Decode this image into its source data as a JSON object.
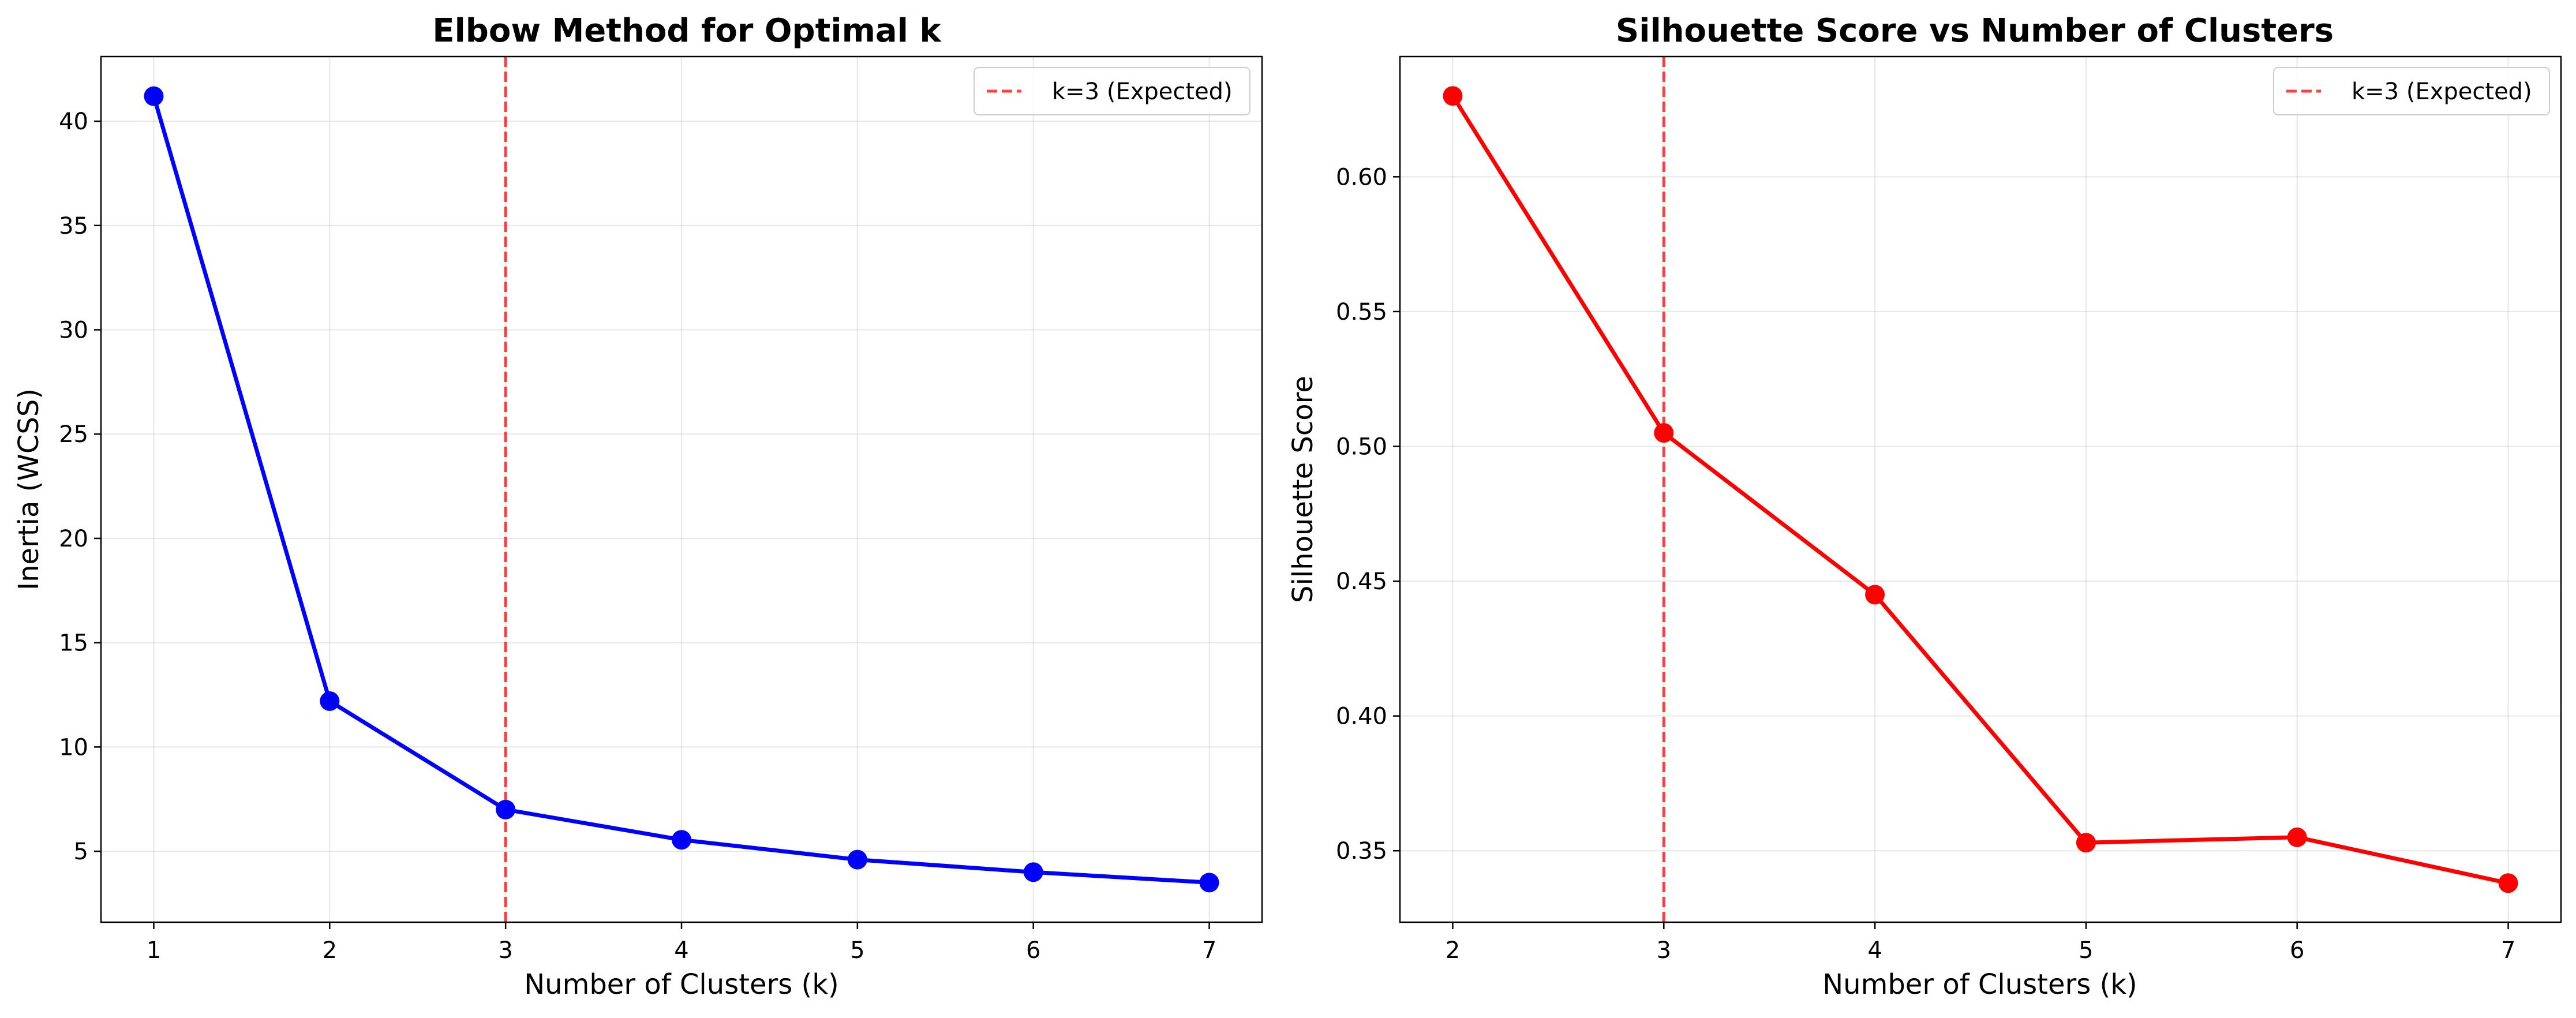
{
  "chart_data": [
    {
      "type": "line",
      "title": "Elbow Method for Optimal k",
      "xlabel": "Number of Clusters (k)",
      "ylabel": "Inertia (WCSS)",
      "x": [
        1,
        2,
        3,
        4,
        5,
        6,
        7
      ],
      "series": [
        {
          "values": [
            41.2,
            12.2,
            7.0,
            5.55,
            4.6,
            4.0,
            3.5
          ],
          "color": "#0000ff",
          "marker": "circle"
        }
      ],
      "xlim": [
        0.7,
        7.3
      ],
      "ylim": [
        1.6,
        43.1
      ],
      "xticks": [
        "1",
        "2",
        "3",
        "4",
        "5",
        "6",
        "7"
      ],
      "yticks": [
        "5",
        "10",
        "15",
        "20",
        "25",
        "30",
        "35",
        "40"
      ],
      "reference_line": {
        "x": 3,
        "color": "#ff0000",
        "style": "dashed"
      },
      "legend": {
        "position": "top-right",
        "entries": [
          "k=3 (Expected)"
        ]
      },
      "grid": true
    },
    {
      "type": "line",
      "title": "Silhouette Score vs Number of Clusters",
      "xlabel": "Number of Clusters (k)",
      "ylabel": "Silhouette Score",
      "x": [
        2,
        3,
        4,
        5,
        6,
        7
      ],
      "series": [
        {
          "values": [
            0.63,
            0.505,
            0.445,
            0.353,
            0.355,
            0.338
          ],
          "color": "#ff0000",
          "marker": "circle"
        }
      ],
      "xlim": [
        1.75,
        7.25
      ],
      "ylim": [
        0.3235,
        0.6446
      ],
      "xticks": [
        "2",
        "3",
        "4",
        "5",
        "6",
        "7"
      ],
      "yticks": [
        "0.35",
        "0.40",
        "0.45",
        "0.50",
        "0.55",
        "0.60"
      ],
      "reference_line": {
        "x": 3,
        "color": "#ff0000",
        "style": "dashed"
      },
      "legend": {
        "position": "top-right",
        "entries": [
          "k=3 (Expected)"
        ]
      },
      "grid": true
    }
  ]
}
